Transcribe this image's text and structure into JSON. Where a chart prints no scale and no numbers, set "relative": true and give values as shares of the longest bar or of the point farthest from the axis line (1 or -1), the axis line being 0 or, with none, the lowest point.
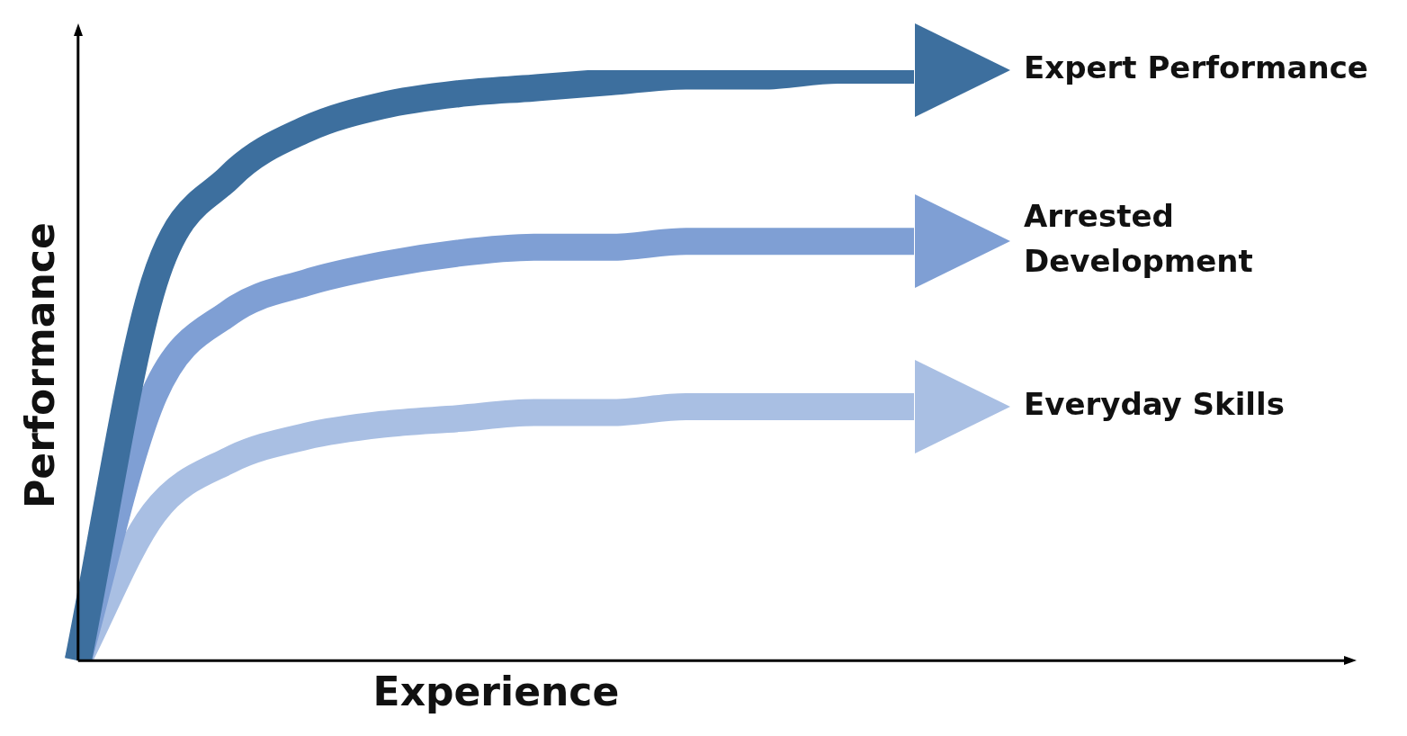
{
  "chart_data": {
    "type": "line",
    "relative": true,
    "xlabel": "Experience",
    "ylabel": "Performance",
    "categories": [
      null,
      null,
      null,
      null,
      null,
      null,
      null,
      null,
      null,
      null,
      null,
      null
    ],
    "series": [
      {
        "name": "Expert Performance",
        "color": "#3d6f9e",
        "values": [
          0,
          0.64,
          0.82,
          0.9,
          0.94,
          0.96,
          0.97,
          0.98,
          0.99,
          0.99,
          1,
          1
        ]
      },
      {
        "name": "Arrested Development",
        "color": "#7f9fd4",
        "values": [
          0,
          0.45,
          0.59,
          0.64,
          0.67,
          0.69,
          0.7,
          0.7,
          0.71,
          0.71,
          0.71,
          0.71
        ]
      },
      {
        "name": "Everyday Skills",
        "color": "#a9bfe3",
        "values": [
          0,
          0.25,
          0.34,
          0.38,
          0.4,
          0.41,
          0.42,
          0.42,
          0.43,
          0.43,
          0.43,
          0.43
        ]
      }
    ],
    "legend": false,
    "grid": false,
    "marker": "none",
    "line_style": "solid"
  }
}
